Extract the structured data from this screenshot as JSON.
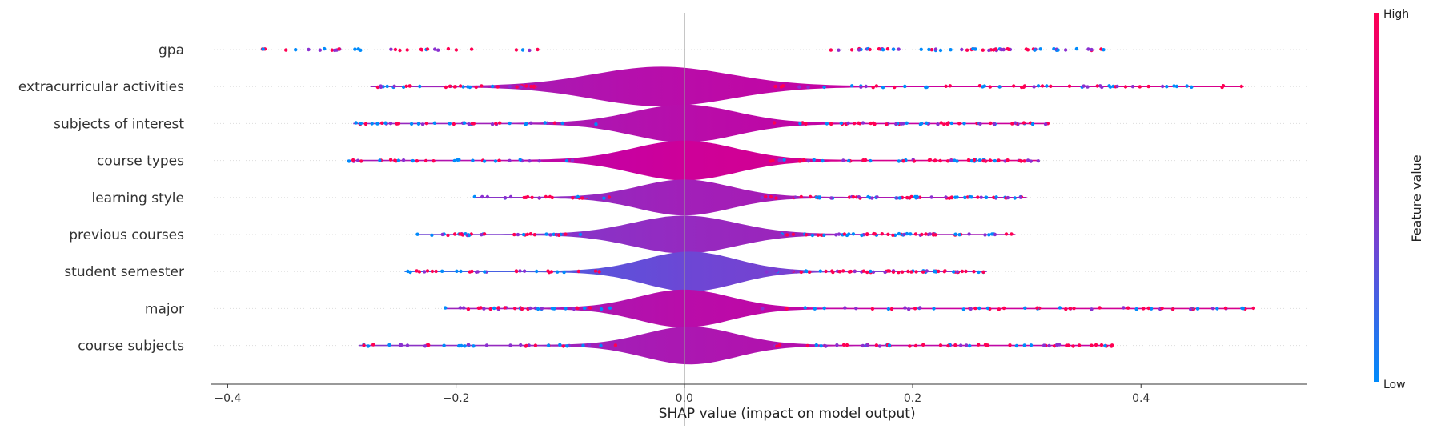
{
  "chart_data": {
    "type": "violin",
    "xlabel": "SHAP value (impact on model output)",
    "xlim": [
      -0.415,
      0.545
    ],
    "xticks": [
      -0.4,
      -0.2,
      0.0,
      0.2,
      0.4
    ],
    "xtick_labels": [
      "−0.4",
      "−0.2",
      "0.0",
      "0.2",
      "0.4"
    ],
    "colorbar": {
      "title": "Feature value",
      "high_label": "High",
      "low_label": "Low",
      "colors": [
        "#008bfb",
        "#7a3fd0",
        "#c800a0",
        "#ff0052"
      ]
    },
    "features": [
      {
        "name": "gpa",
        "min": -0.37,
        "max": 0.37,
        "peak": 0.0,
        "spread": 0.08,
        "amp": 0.0,
        "tilt": 0.5
      },
      {
        "name": "extracurricular activities",
        "min": -0.275,
        "max": 0.49,
        "peak": -0.02,
        "spread": 0.06,
        "amp": 1.0,
        "tilt": 0.6
      },
      {
        "name": "subjects of interest",
        "min": -0.29,
        "max": 0.32,
        "peak": 0.0,
        "spread": 0.045,
        "amp": 0.95,
        "tilt": 0.6
      },
      {
        "name": "course types",
        "min": -0.295,
        "max": 0.31,
        "peak": 0.0,
        "spread": 0.045,
        "amp": 1.0,
        "tilt": 0.7
      },
      {
        "name": "learning style",
        "min": -0.185,
        "max": 0.3,
        "peak": 0.0,
        "spread": 0.04,
        "amp": 0.9,
        "tilt": 0.5
      },
      {
        "name": "previous courses",
        "min": -0.235,
        "max": 0.29,
        "peak": 0.0,
        "spread": 0.045,
        "amp": 0.95,
        "tilt": 0.45
      },
      {
        "name": "student semester",
        "min": -0.245,
        "max": 0.265,
        "peak": 0.005,
        "spread": 0.04,
        "amp": 1.0,
        "tilt": 0.3
      },
      {
        "name": "major",
        "min": -0.21,
        "max": 0.5,
        "peak": 0.0,
        "spread": 0.04,
        "amp": 0.95,
        "tilt": 0.6
      },
      {
        "name": "course subjects",
        "min": -0.285,
        "max": 0.375,
        "peak": 0.005,
        "spread": 0.04,
        "amp": 0.95,
        "tilt": 0.55
      }
    ]
  }
}
